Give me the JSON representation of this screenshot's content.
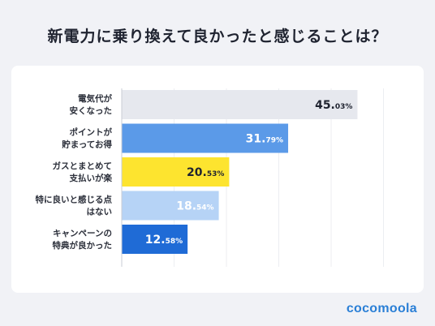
{
  "title": "新電力に乗り換えて良かったと感じることは？",
  "brand": "cocomoola",
  "chart_data": {
    "type": "bar",
    "orientation": "horizontal",
    "categories": [
      [
        "電気代が",
        "安くなった"
      ],
      [
        "ポイントが",
        "貯まってお得"
      ],
      [
        "ガスとまとめて",
        "支払いが楽"
      ],
      [
        "特に良いと感じる点",
        "はない"
      ],
      [
        "キャンペーンの",
        "特典が良かった"
      ]
    ],
    "values": [
      45.03,
      31.79,
      20.53,
      18.54,
      12.58
    ],
    "value_labels": [
      {
        "int": "45.",
        "dec": "03%"
      },
      {
        "int": "31.",
        "dec": "79%"
      },
      {
        "int": "20.",
        "dec": "53%"
      },
      {
        "int": "18.",
        "dec": "54%"
      },
      {
        "int": "12.",
        "dec": "58%"
      }
    ],
    "bar_colors": [
      "#e6e8ee",
      "#5b9ae8",
      "#fde42f",
      "#b6d3f6",
      "#1f6bd6"
    ],
    "label_colors": [
      "#1f2330",
      "#ffffff",
      "#1f2330",
      "#ffffff",
      "#ffffff"
    ],
    "xlim": [
      0,
      50
    ],
    "grid": true
  }
}
